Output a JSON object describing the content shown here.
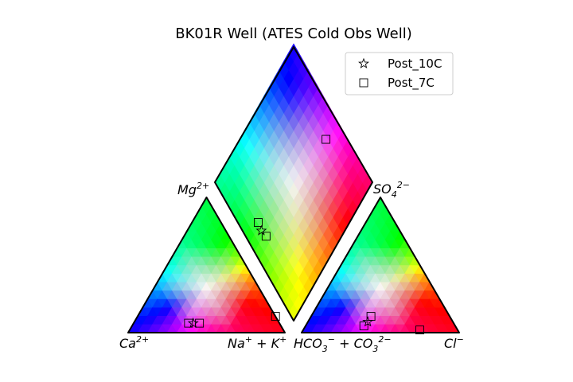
{
  "chart_data": {
    "type": "scatter",
    "diagram": "piper",
    "title": "BK01R Well (ATES Cold Obs Well)",
    "legend": {
      "placement": "top-right",
      "entries": [
        {
          "label": "Post_10C",
          "marker": "star"
        },
        {
          "label": "Post_7C",
          "marker": "square"
        }
      ]
    },
    "ion_labels": {
      "ca": [
        "Ca",
        "2+",
        ""
      ],
      "nak": [
        "Na",
        "+",
        " + K",
        "+"
      ],
      "mg": [
        "Mg",
        "2+",
        ""
      ],
      "hco3": [
        "HCO",
        "3",
        "−",
        " + CO",
        "3",
        "2−"
      ],
      "cl": [
        "Cl",
        "−"
      ],
      "so4": [
        "SO",
        "4",
        "2−"
      ]
    },
    "series": [
      {
        "name": "Post_10C",
        "marker": "star",
        "cation_mg_na": [
          [
            0.07,
            0.38
          ]
        ],
        "anion_so4_cl": [
          [
            0.08,
            0.38
          ]
        ],
        "diamond_left_right": [
          [
            0.53,
            0.12
          ]
        ]
      },
      {
        "name": "Post_7C",
        "marker": "square",
        "cation_mg_na": [
          [
            0.07,
            0.42
          ],
          [
            0.07,
            0.35
          ],
          [
            0.12,
            0.88
          ]
        ],
        "anion_so4_cl": [
          [
            0.12,
            0.38
          ],
          [
            0.05,
            0.37
          ],
          [
            0.02,
            0.74
          ]
        ],
        "diamond_left_right": [
          [
            0.58,
            0.13
          ],
          [
            0.48,
            0.13
          ],
          [
            0.45,
            0.86
          ]
        ]
      }
    ]
  }
}
